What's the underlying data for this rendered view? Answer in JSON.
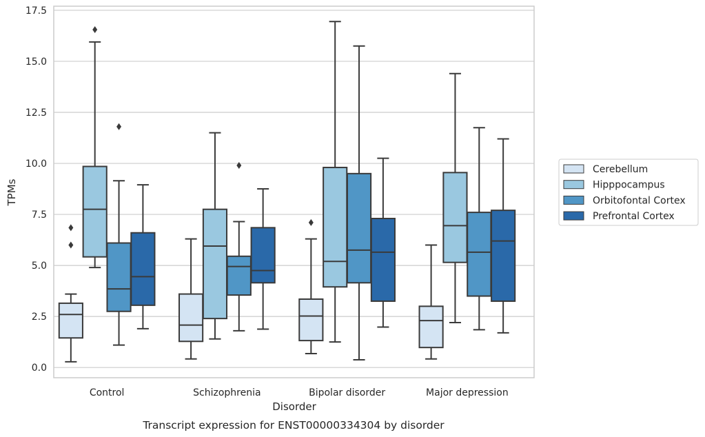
{
  "chart_data": {
    "type": "boxplot",
    "title": "",
    "caption": "Transcript expression for ENST00000334304 by disorder",
    "xlabel": "Disorder",
    "ylabel": "TPMs",
    "ylim": [
      -0.5,
      17.7
    ],
    "yticks": [
      "0.0",
      "2.5",
      "5.0",
      "7.5",
      "10.0",
      "12.5",
      "15.0",
      "17.5"
    ],
    "categories": [
      "Control",
      "Schizophrenia",
      "Bipolar disorder",
      "Major depression"
    ],
    "grid": "horizontal",
    "legend_position": "right",
    "series": [
      {
        "name": "Cerebellum",
        "color": "#d4e4f3",
        "boxes": [
          {
            "whislo": 0.28,
            "q1": 1.45,
            "med": 2.6,
            "q3": 3.15,
            "whishi": 3.6,
            "fliers": [
              6.85,
              6.0
            ]
          },
          {
            "whislo": 0.42,
            "q1": 1.28,
            "med": 2.08,
            "q3": 3.6,
            "whishi": 6.3,
            "fliers": []
          },
          {
            "whislo": 0.68,
            "q1": 1.32,
            "med": 2.52,
            "q3": 3.35,
            "whishi": 6.3,
            "fliers": [
              7.1
            ]
          },
          {
            "whislo": 0.42,
            "q1": 0.98,
            "med": 2.3,
            "q3": 3.0,
            "whishi": 6.0,
            "fliers": []
          }
        ]
      },
      {
        "name": "Hipppocampus",
        "color": "#9ac8e0",
        "boxes": [
          {
            "whislo": 4.9,
            "q1": 5.42,
            "med": 7.75,
            "q3": 9.85,
            "whishi": 15.95,
            "fliers": [
              16.55
            ]
          },
          {
            "whislo": 1.4,
            "q1": 2.4,
            "med": 5.95,
            "q3": 7.75,
            "whishi": 11.5,
            "fliers": []
          },
          {
            "whislo": 1.25,
            "q1": 3.95,
            "med": 5.2,
            "q3": 9.8,
            "whishi": 16.95,
            "fliers": []
          },
          {
            "whislo": 2.2,
            "q1": 5.15,
            "med": 6.95,
            "q3": 9.55,
            "whishi": 14.4,
            "fliers": []
          }
        ]
      },
      {
        "name": "Orbitofontal Cortex",
        "color": "#5096c6",
        "boxes": [
          {
            "whislo": 1.1,
            "q1": 2.75,
            "med": 3.85,
            "q3": 6.1,
            "whishi": 9.15,
            "fliers": [
              11.8
            ]
          },
          {
            "whislo": 1.8,
            "q1": 3.55,
            "med": 4.95,
            "q3": 5.45,
            "whishi": 7.15,
            "fliers": [
              9.9
            ]
          },
          {
            "whislo": 0.38,
            "q1": 4.15,
            "med": 5.75,
            "q3": 9.5,
            "whishi": 15.75,
            "fliers": []
          },
          {
            "whislo": 1.85,
            "q1": 3.5,
            "med": 5.65,
            "q3": 7.6,
            "whishi": 11.75,
            "fliers": []
          }
        ]
      },
      {
        "name": "Prefrontal Cortex",
        "color": "#2a69a9",
        "boxes": [
          {
            "whislo": 1.9,
            "q1": 3.05,
            "med": 4.45,
            "q3": 6.6,
            "whishi": 8.95,
            "fliers": []
          },
          {
            "whislo": 1.88,
            "q1": 4.15,
            "med": 4.75,
            "q3": 6.85,
            "whishi": 8.75,
            "fliers": []
          },
          {
            "whislo": 1.98,
            "q1": 3.25,
            "med": 5.65,
            "q3": 7.3,
            "whishi": 10.25,
            "fliers": []
          },
          {
            "whislo": 1.7,
            "q1": 3.25,
            "med": 6.2,
            "q3": 7.7,
            "whishi": 11.2,
            "fliers": []
          }
        ]
      }
    ]
  }
}
